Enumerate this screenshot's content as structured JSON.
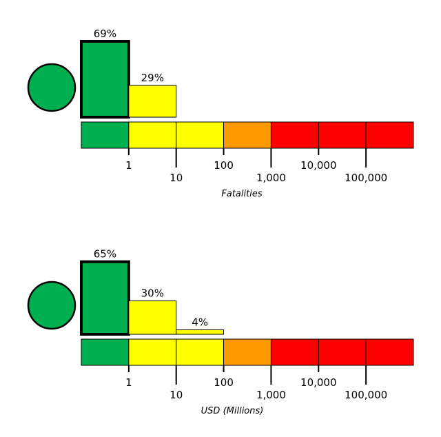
{
  "chart_data": [
    {
      "type": "bar",
      "xlabel": "Fatalities",
      "scale": "log",
      "tick_labels": [
        "1",
        "10",
        "100",
        "1,000",
        "10,000",
        "100,000"
      ],
      "bin_colors": [
        "#00b050",
        "#ffff00",
        "#ffff00",
        "#ff9900",
        "#ff0000",
        "#ff0000",
        "#ff0000"
      ],
      "values": [
        69,
        29,
        0,
        0,
        0,
        0,
        0
      ],
      "data_labels": [
        "69%",
        "29%",
        "",
        "",
        "",
        "",
        ""
      ],
      "highlighted_bin": 0,
      "alert_color": "#00b050"
    },
    {
      "type": "bar",
      "xlabel": "USD (Millions)",
      "scale": "log",
      "tick_labels": [
        "1",
        "10",
        "100",
        "1,000",
        "10,000",
        "100,000"
      ],
      "bin_colors": [
        "#00b050",
        "#ffff00",
        "#ffff00",
        "#ff9900",
        "#ff0000",
        "#ff0000",
        "#ff0000"
      ],
      "values": [
        65,
        30,
        4,
        0,
        0,
        0,
        0
      ],
      "data_labels": [
        "65%",
        "30%",
        "4%",
        "",
        "",
        "",
        ""
      ],
      "highlighted_bin": 0,
      "alert_color": "#00b050"
    }
  ]
}
